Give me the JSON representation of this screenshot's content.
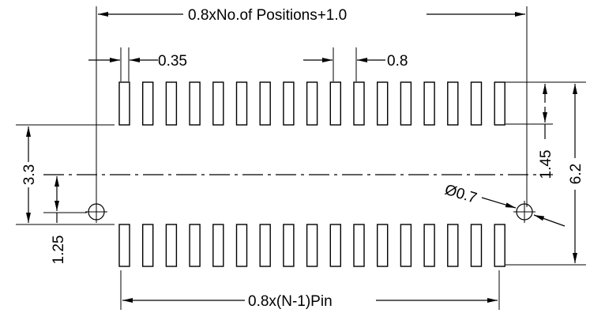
{
  "labels": {
    "overall_width": "0.8xNo.of  Positions+1.0",
    "pad_width": "0.35",
    "pitch": "0.8",
    "pin_span": "0.8x(N-1)Pin",
    "row_to_center": "3.3",
    "hole_offset": "1.25",
    "pad_length": "1.45",
    "overall_height": "6.2",
    "hole_diameter": "Ø0.7"
  },
  "pads_per_row": 17
}
